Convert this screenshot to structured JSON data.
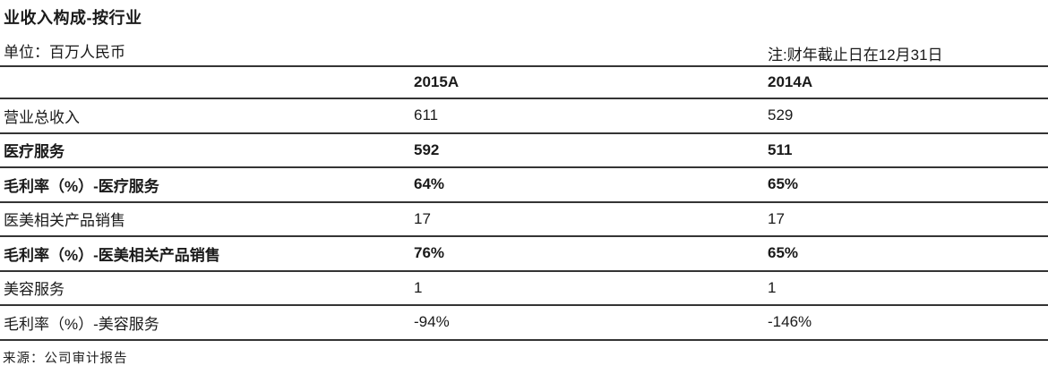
{
  "page": {
    "title": "业收入构成-按行业",
    "unit_label": "单位：百万人民币",
    "fiscal_note": "注:财年截止日在12月31日",
    "source": "来源：公司审计报告"
  },
  "colors": {
    "text": "#1a1a1a",
    "rule_line": "#343434",
    "background": "#ffffff"
  },
  "chart_data": {
    "type": "table",
    "title": "业收入构成-按行业",
    "unit": "百万人民币",
    "note": "注:财年截止日在12月31日",
    "columns": [
      "2015A",
      "2014A"
    ],
    "rows": [
      {
        "label": "营业总收入",
        "values": [
          "611",
          "529"
        ],
        "bold": false
      },
      {
        "label": "医疗服务",
        "values": [
          "592",
          "511"
        ],
        "bold": true
      },
      {
        "label": "毛利率（%）-医疗服务",
        "values": [
          "64%",
          "65%"
        ],
        "bold": true
      },
      {
        "label": "医美相关产品销售",
        "values": [
          "17",
          "17"
        ],
        "bold": false
      },
      {
        "label": "毛利率（%）-医美相关产品销售",
        "values": [
          "76%",
          "65%"
        ],
        "bold": true
      },
      {
        "label": "美容服务",
        "values": [
          "1",
          "1"
        ],
        "bold": false
      },
      {
        "label": "毛利率（%）-美容服务",
        "values": [
          "-94%",
          "-146%"
        ],
        "bold": false
      }
    ],
    "source": "来源：公司审计报告",
    "layout": {
      "grid": "horizontal-rules-only",
      "value_alignment": "left"
    }
  }
}
